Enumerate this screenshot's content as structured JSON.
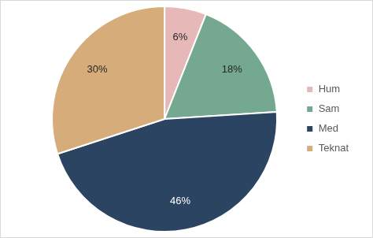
{
  "chart_data": {
    "type": "pie",
    "categories": [
      "Hum",
      "Sam",
      "Med",
      "Teknat"
    ],
    "values": [
      6,
      18,
      46,
      30
    ],
    "value_labels": [
      "6%",
      "18%",
      "46%",
      "30%"
    ],
    "colors": [
      "#e6b9b8",
      "#74a891",
      "#2b4462",
      "#d5ac7a"
    ],
    "legend": "right",
    "data_labels": true
  }
}
